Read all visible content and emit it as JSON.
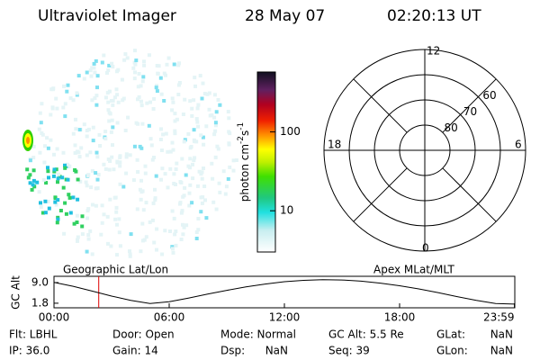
{
  "header": {
    "instrument": "Ultraviolet Imager",
    "date": "28 May 07",
    "time": "02:20:13 UT"
  },
  "colorbar": {
    "unit_parts": [
      "photon cm",
      "-2",
      "s",
      "-1"
    ],
    "lim": [
      3,
      575
    ],
    "log": true,
    "ticks": [
      10,
      100
    ]
  },
  "polar": {
    "rlim": [
      90,
      50
    ],
    "rings": [
      60,
      70,
      80
    ],
    "ring_labels": [
      60,
      70,
      80
    ],
    "mlt_labels": {
      "top": "12",
      "left": "18",
      "right": "6",
      "bottom": "0"
    }
  },
  "orbit": {
    "left_label": "Geographic Lat/Lon",
    "right_label": "Apex MLat/MLT",
    "ylabel": "GC Alt",
    "xlim": [
      0,
      24
    ],
    "ylim": [
      0.2,
      11.2
    ],
    "xticks": [
      {
        "value": 0,
        "label": "00:00"
      },
      {
        "value": 6,
        "label": "06:00"
      },
      {
        "value": 12,
        "label": "12:00"
      },
      {
        "value": 18,
        "label": "18:00"
      },
      {
        "value": 23.98,
        "label": "23:59"
      }
    ],
    "yticks": [
      {
        "value": 9,
        "label": "9.0"
      },
      1.8
    ],
    "x": [
      0,
      1,
      2,
      3,
      4,
      5,
      6,
      7,
      8,
      9,
      10,
      11,
      12,
      13,
      14,
      15,
      16,
      17,
      18,
      19,
      20,
      21,
      22,
      23,
      23.98
    ],
    "values": [
      9.1,
      7.7,
      6.0,
      4.3,
      2.8,
      1.7,
      2.3,
      3.6,
      5.0,
      6.3,
      7.5,
      8.5,
      9.3,
      9.8,
      10.0,
      9.9,
      9.5,
      8.8,
      7.9,
      6.8,
      5.5,
      4.1,
      2.8,
      1.7,
      1.5
    ],
    "marker_x": 2.33,
    "marker_color": "#e00000",
    "line_color": "#000000"
  },
  "info": [
    [
      "Flt: LBHL",
      "Door: Open",
      "Mode: Normal",
      "GC Alt: 5.5 Re",
      "GLat:",
      "NaN"
    ],
    [
      "IP: 36.0",
      "Gain: 14",
      "Dsp:",
      "NaN",
      "Seq: 39",
      "GLon:",
      "NaN"
    ]
  ]
}
